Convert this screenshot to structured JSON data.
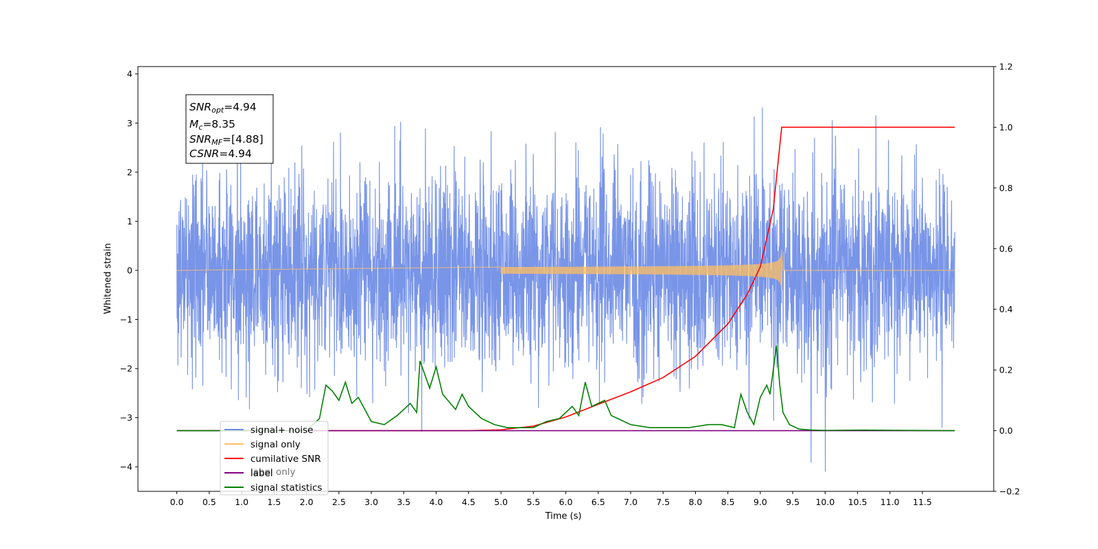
{
  "chart_data": {
    "type": "line",
    "title": "",
    "xlabel": "Time (s)",
    "ylabel": "Whitened strain",
    "xlim": [
      -0.6,
      12.6
    ],
    "ylim": [
      -4.5,
      4.15
    ],
    "y2lim": [
      -0.2,
      1.2
    ],
    "grid": false,
    "legend_position": "lower-left",
    "x_ticks": [
      "0.0",
      "0.5",
      "1.0",
      "1.5",
      "2.0",
      "2.5",
      "3.0",
      "3.5",
      "4.0",
      "4.5",
      "5.0",
      "5.5",
      "6.0",
      "6.5",
      "7.0",
      "7.5",
      "8.0",
      "8.5",
      "9.0",
      "9.5",
      "10.0",
      "10.5",
      "11.0",
      "11.5"
    ],
    "y_ticks": [
      "4",
      "3",
      "2",
      "1",
      "0",
      "−1",
      "−2",
      "−3",
      "−4"
    ],
    "y2_ticks": [
      "1.2",
      "1.0",
      "0.8",
      "0.6",
      "0.4",
      "0.2",
      "0.0",
      "−0.2"
    ],
    "annotation": {
      "snr_opt_sym": "SNR",
      "snr_opt_sub": "opt",
      "snr_opt_val": "=4.94",
      "mc_sym": "M",
      "mc_sub": "c",
      "mc_val": "=8.35",
      "snr_mf_sym": "SNR",
      "snr_mf_sub": "MF",
      "snr_mf_val": "=[4.88]",
      "csnr_sym": "CSNR",
      "csnr_val": "=4.94"
    },
    "series": [
      {
        "name": "signal+ noise",
        "color": "#6a8ae6",
        "axis": "left",
        "t_range": [
          0,
          12.0
        ],
        "noise_std": 1.0,
        "description_of_values": "white noise, approx std 1, peaks to about +3.75 / -4.1"
      },
      {
        "name": "signal only",
        "color": "#ffbf60",
        "axis": "left",
        "chirp": {
          "start": 5.0,
          "merger": 9.33,
          "peak_amplitude": 0.52
        }
      },
      {
        "name": "cumilative SNR",
        "color": "#ff0000",
        "axis": "right",
        "x": [
          0,
          4.5,
          5.0,
          5.5,
          6.0,
          6.5,
          7.0,
          7.5,
          8.0,
          8.5,
          8.8,
          9.0,
          9.2,
          9.33,
          12.0
        ],
        "y": [
          0,
          0,
          0.003,
          0.015,
          0.045,
          0.087,
          0.128,
          0.175,
          0.245,
          0.352,
          0.45,
          0.54,
          0.73,
          1.0,
          1.0
        ]
      },
      {
        "name": "label",
        "color": "#800080",
        "axis": "right",
        "x": [
          0,
          12.0
        ],
        "y": [
          0,
          0
        ]
      },
      {
        "name": "signal statistics",
        "color": "#008000",
        "axis": "right",
        "x": [
          0,
          2.0,
          2.1,
          2.2,
          2.3,
          2.4,
          2.5,
          2.6,
          2.7,
          2.8,
          2.9,
          3.0,
          3.2,
          3.4,
          3.6,
          3.7,
          3.75,
          3.9,
          4.0,
          4.1,
          4.3,
          4.4,
          4.5,
          4.7,
          4.9,
          5.1,
          5.3,
          5.5,
          5.7,
          5.9,
          6.1,
          6.2,
          6.3,
          6.4,
          6.5,
          6.6,
          6.7,
          6.8,
          7.0,
          7.3,
          7.6,
          7.9,
          8.2,
          8.4,
          8.6,
          8.7,
          8.8,
          8.9,
          9.0,
          9.1,
          9.15,
          9.2,
          9.25,
          9.3,
          9.35,
          9.45,
          9.6,
          9.8,
          10.0,
          10.6,
          12.0
        ],
        "y": [
          0,
          0,
          0.02,
          0.04,
          0.15,
          0.13,
          0.1,
          0.16,
          0.09,
          0.11,
          0.07,
          0.03,
          0.02,
          0.05,
          0.09,
          0.06,
          0.23,
          0.14,
          0.21,
          0.12,
          0.07,
          0.12,
          0.08,
          0.04,
          0.02,
          0.01,
          0.01,
          0.01,
          0.03,
          0.04,
          0.08,
          0.05,
          0.16,
          0.08,
          0.09,
          0.1,
          0.05,
          0.04,
          0.02,
          0.01,
          0.01,
          0.01,
          0.02,
          0.02,
          0.01,
          0.12,
          0.06,
          0.02,
          0.11,
          0.15,
          0.12,
          0.2,
          0.28,
          0.15,
          0.06,
          0.02,
          0.005,
          0.002,
          0.001,
          0.002,
          0
        ]
      }
    ],
    "legend": [
      "signal+ noise",
      "signal only",
      "cumilative SNR",
      "label",
      "signal statistics"
    ],
    "legend_overlapped_text": "label only"
  }
}
